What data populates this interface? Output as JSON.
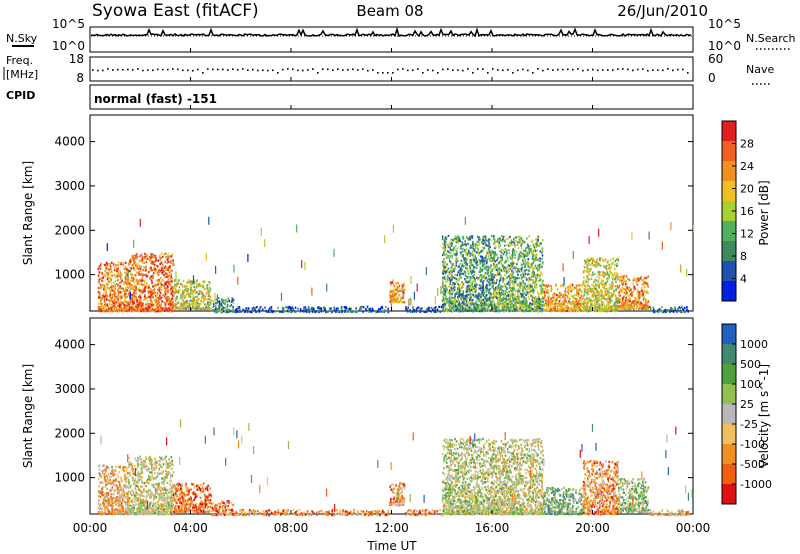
{
  "header": {
    "station": "Syowa East (fitACF)",
    "beam": "Beam 08",
    "date": "26/Jun/2010"
  },
  "top_panels": {
    "nsky_label": "N.Sky",
    "nsky_ticks": [
      "10^5",
      "10^0"
    ],
    "nsearch_label": "N.Search",
    "nsearch_ticks": [
      "10^5",
      "10^0"
    ],
    "freq_label_1": "Freq.",
    "freq_label_2": "[MHz]",
    "freq_ticks": [
      "18",
      "8"
    ],
    "nave_label": "Nave",
    "nave_ticks": [
      "60",
      "0"
    ],
    "cpid_label": "CPID",
    "cpid_value": "normal (fast) -151"
  },
  "colors": {
    "power": [
      "#0020e0",
      "#2050b0",
      "#3e8a60",
      "#50b060",
      "#a8d030",
      "#f0c020",
      "#f09020",
      "#f06020",
      "#e02020"
    ],
    "velocity": [
      "#e01010",
      "#f06010",
      "#f09020",
      "#f0c060",
      "#b8b8b8",
      "#90c050",
      "#50a040",
      "#3e8a70",
      "#2060c0"
    ]
  },
  "chart_data": [
    {
      "type": "heatmap",
      "panel": "power",
      "xlabel": "",
      "ylabel": "Slant Range [km]",
      "ylim": [
        180,
        4600
      ],
      "yticks": [
        "4000",
        "3000",
        "2000",
        "1000"
      ],
      "colorbar_label": "Power [dB]",
      "colorbar_ticks": [
        "28",
        "24",
        "20",
        "16",
        "12",
        "8",
        "4"
      ],
      "patches": [
        {
          "t0": 0.3,
          "t1": 1.5,
          "r0": 200,
          "r1": 1300,
          "v": 0.75
        },
        {
          "t0": 1.5,
          "t1": 3.3,
          "r0": 200,
          "r1": 1500,
          "v": 0.8
        },
        {
          "t0": 3.3,
          "t1": 4.8,
          "r0": 250,
          "r1": 900,
          "v": 0.55
        },
        {
          "t0": 4.8,
          "t1": 5.7,
          "r0": 180,
          "r1": 500,
          "v": 0.3
        },
        {
          "t0": 5.7,
          "t1": 11.9,
          "r0": 180,
          "r1": 300,
          "v": 0.15
        },
        {
          "t0": 11.9,
          "t1": 12.5,
          "r0": 400,
          "r1": 900,
          "v": 0.75
        },
        {
          "t0": 12.5,
          "t1": 14.0,
          "r0": 180,
          "r1": 300,
          "v": 0.15
        },
        {
          "t0": 14.0,
          "t1": 16.0,
          "r0": 200,
          "r1": 1900,
          "v": 0.35
        },
        {
          "t0": 16.0,
          "t1": 18.0,
          "r0": 200,
          "r1": 1900,
          "v": 0.4
        },
        {
          "t0": 18.0,
          "t1": 19.6,
          "r0": 200,
          "r1": 800,
          "v": 0.7
        },
        {
          "t0": 19.6,
          "t1": 21.0,
          "r0": 200,
          "r1": 1400,
          "v": 0.55
        },
        {
          "t0": 21.0,
          "t1": 22.2,
          "r0": 250,
          "r1": 1000,
          "v": 0.75
        },
        {
          "t0": 22.2,
          "t1": 23.8,
          "r0": 180,
          "r1": 300,
          "v": 0.2
        }
      ]
    },
    {
      "type": "heatmap",
      "panel": "velocity",
      "xlabel": "Time UT",
      "ylabel": "Slant Range [km]",
      "ylim": [
        180,
        4600
      ],
      "yticks": [
        "4000",
        "3000",
        "2000",
        "1000"
      ],
      "xticks": [
        "00:00",
        "04:00",
        "08:00",
        "12:00",
        "16:00",
        "20:00",
        "00:00"
      ],
      "colorbar_label": "Velocity [m s^-1]",
      "colorbar_ticks": [
        "1000",
        "500",
        "100",
        "25",
        "-25",
        "-100",
        "-500",
        "-1000"
      ],
      "patches": [
        {
          "t0": 0.3,
          "t1": 1.5,
          "r0": 200,
          "r1": 1300,
          "v": 0.35
        },
        {
          "t0": 1.5,
          "t1": 3.3,
          "r0": 200,
          "r1": 1500,
          "v": 0.5
        },
        {
          "t0": 3.3,
          "t1": 4.8,
          "r0": 250,
          "r1": 900,
          "v": 0.2
        },
        {
          "t0": 4.8,
          "t1": 5.7,
          "r0": 180,
          "r1": 500,
          "v": 0.25
        },
        {
          "t0": 5.7,
          "t1": 11.9,
          "r0": 180,
          "r1": 300,
          "v": 0.25
        },
        {
          "t0": 11.9,
          "t1": 12.5,
          "r0": 400,
          "r1": 900,
          "v": 0.3
        },
        {
          "t0": 12.5,
          "t1": 14.0,
          "r0": 180,
          "r1": 300,
          "v": 0.3
        },
        {
          "t0": 14.0,
          "t1": 16.0,
          "r0": 200,
          "r1": 1900,
          "v": 0.55
        },
        {
          "t0": 16.0,
          "t1": 18.0,
          "r0": 200,
          "r1": 1900,
          "v": 0.5
        },
        {
          "t0": 18.0,
          "t1": 19.6,
          "r0": 200,
          "r1": 800,
          "v": 0.65
        },
        {
          "t0": 19.6,
          "t1": 21.0,
          "r0": 200,
          "r1": 1400,
          "v": 0.3
        },
        {
          "t0": 21.0,
          "t1": 22.2,
          "r0": 250,
          "r1": 1000,
          "v": 0.6
        },
        {
          "t0": 22.2,
          "t1": 23.8,
          "r0": 180,
          "r1": 300,
          "v": 0.35
        }
      ]
    }
  ]
}
